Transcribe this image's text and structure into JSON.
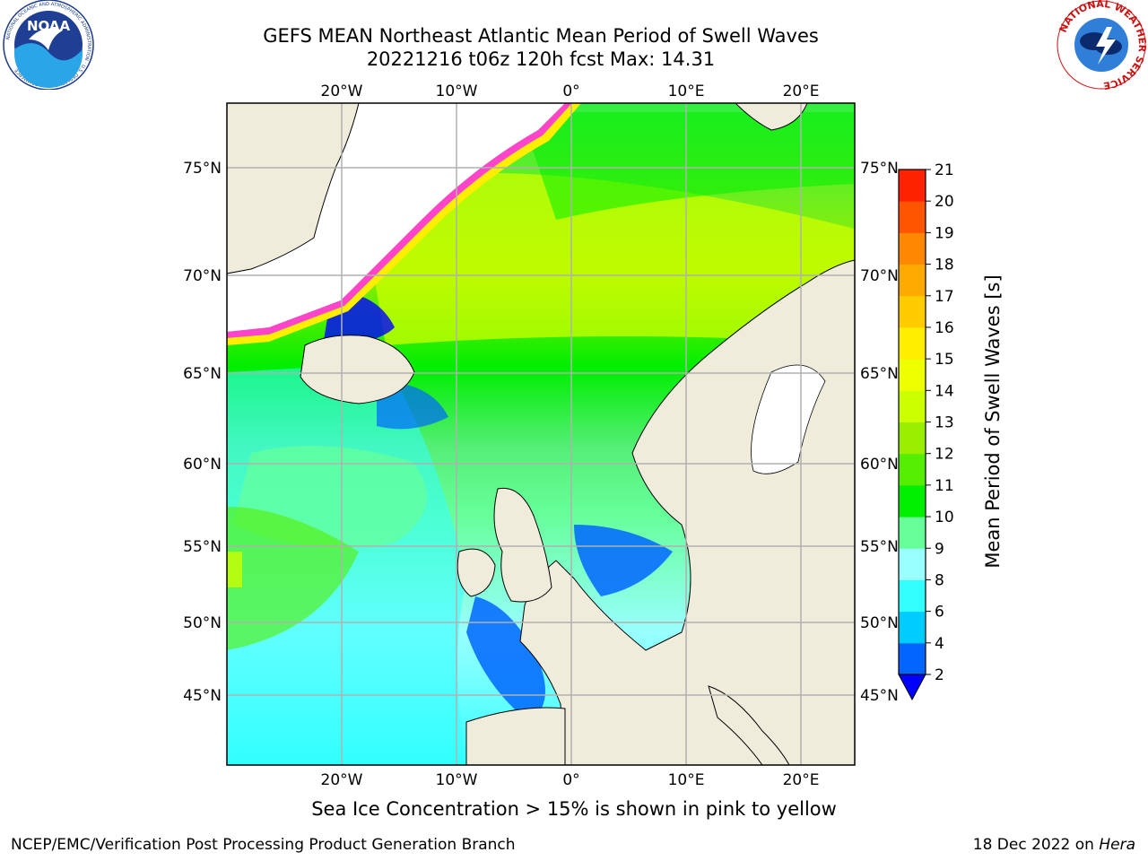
{
  "title": {
    "line1": "GEFS MEAN Northeast Atlantic Mean Period of Swell Waves",
    "line2": "20221216 t06z 120h fcst   Max: 14.31"
  },
  "map": {
    "lon_ticks": [
      "20°W",
      "10°W",
      "0°",
      "10°E",
      "20°E"
    ],
    "lat_ticks": [
      "75°N",
      "70°N",
      "65°N",
      "60°N",
      "55°N",
      "50°N",
      "45°N"
    ],
    "land_color": "#efecdc",
    "gridline_color": "#b0b0b0"
  },
  "colorbar": {
    "label": "Mean Period of Swell Waves [s]",
    "ticks": [
      "2",
      "4",
      "6",
      "8",
      "9",
      "10",
      "11",
      "12",
      "13",
      "14",
      "15",
      "16",
      "17",
      "18",
      "19",
      "20",
      "21"
    ],
    "colors": [
      "#0066ff",
      "#00ccff",
      "#33ffff",
      "#99ffff",
      "#66ff99",
      "#00ee00",
      "#55ee00",
      "#99ee00",
      "#ccff00",
      "#eeff00",
      "#ffee00",
      "#ffcc00",
      "#ffaa00",
      "#ff8800",
      "#ff5500",
      "#ff2200"
    ],
    "extend_color": "#0000ff"
  },
  "ice_note": "Sea Ice Concentration > 15% is shown in pink to yellow",
  "footer": {
    "left": "NCEP/EMC/Verification Post Processing Product Generation Branch",
    "right_date": "18 Dec 2022 on ",
    "right_host": "Hera"
  },
  "logos": {
    "noaa_text": "NOAA",
    "noaa_ring": "NATIONAL OCEANIC AND ATMOSPHERIC ADMINISTRATION · U.S. DEPARTMENT OF COMMERCE",
    "nws_ring": "NATIONAL WEATHER SERVICE"
  }
}
